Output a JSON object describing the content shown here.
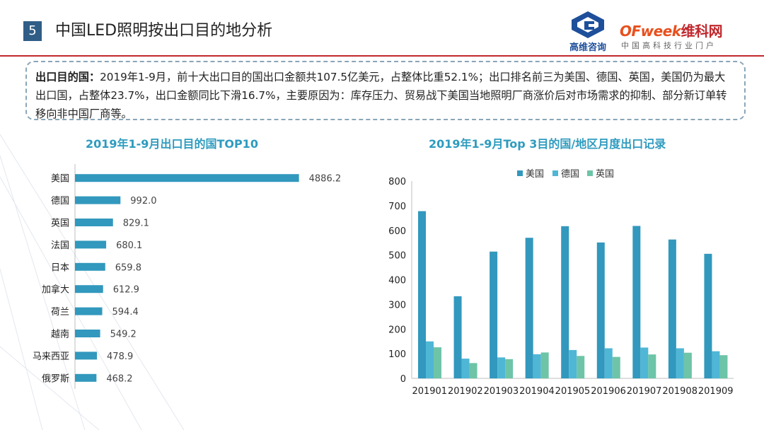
{
  "header": {
    "section_number": "5",
    "title": "中国LED照明按出口目的地分析"
  },
  "logos": {
    "gaowei": "高维咨询",
    "ofweek_latin": "OFweek",
    "ofweek_cn": "维科网",
    "ofweek_sub": "中国高科技行业门户"
  },
  "summary": {
    "label": "出口目的国：",
    "text": "2019年1-9月，前十大出口目的国出口金额共107.5亿美元，占整体比重52.1%；出口排名前三为美国、德国、英国，美国仍为最大出口国，占整体23.7%，出口金额同比下滑16.7%，主要原因为：库存压力、贸易战下美国当地照明厂商涨价后对市场需求的抑制、部分新订单转移向非中国厂商等。"
  },
  "colors": {
    "bar_primary": "#3298bd",
    "us": "#3298bd",
    "de": "#4fb6d6",
    "uk": "#6ec4a7",
    "title": "#2e9bbf",
    "header_line": "#c0282d"
  },
  "chart_data": [
    {
      "type": "bar",
      "orientation": "horizontal",
      "title": "2019年1-9月出口目的国TOP10",
      "categories": [
        "美国",
        "德国",
        "英国",
        "法国",
        "日本",
        "加拿大",
        "荷兰",
        "越南",
        "马来西亚",
        "俄罗斯"
      ],
      "values": [
        4886.2,
        992.0,
        829.1,
        680.1,
        659.8,
        612.9,
        594.4,
        549.2,
        478.9,
        468.2
      ],
      "value_labels": [
        "4886.2",
        "992.0",
        "829.1",
        "680.1",
        "659.8",
        "612.9",
        "594.4",
        "549.2",
        "478.9",
        "468.2"
      ],
      "xlim": [
        0,
        5000
      ]
    },
    {
      "type": "bar",
      "title": "2019年1-9月Top 3目的国/地区月度出口记录",
      "categories": [
        "201901",
        "201902",
        "201903",
        "201904",
        "201905",
        "201906",
        "201907",
        "201908",
        "201909"
      ],
      "series": [
        {
          "name": "美国",
          "values": [
            678,
            333,
            514,
            570,
            617,
            551,
            618,
            563,
            505
          ]
        },
        {
          "name": "德国",
          "values": [
            150,
            80,
            85,
            98,
            115,
            122,
            125,
            122,
            110
          ]
        },
        {
          "name": "英国",
          "values": [
            126,
            62,
            78,
            105,
            91,
            87,
            97,
            104,
            94
          ]
        }
      ],
      "ylim": [
        0,
        800
      ],
      "yticks": [
        0,
        100,
        200,
        300,
        400,
        500,
        600,
        700,
        800
      ],
      "ytick_labels": [
        "0",
        "100",
        "200",
        "300",
        "400",
        "500",
        "600",
        "700",
        "800"
      ],
      "legend_position": "top-center"
    }
  ]
}
